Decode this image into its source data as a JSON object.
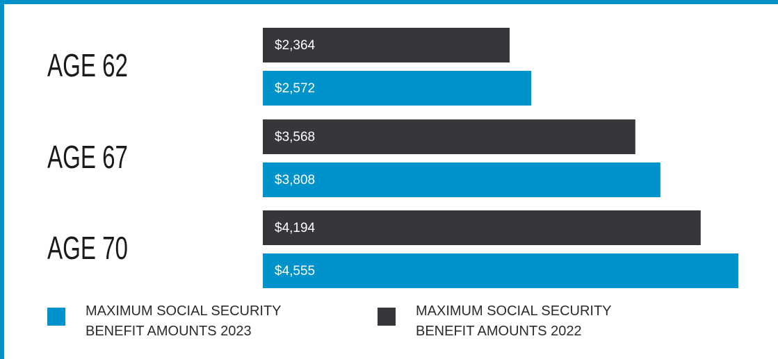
{
  "chart_data": {
    "type": "bar",
    "orientation": "horizontal",
    "categories": [
      "AGE 62",
      "AGE 67",
      "AGE 70"
    ],
    "series": [
      {
        "name": "MAXIMUM SOCIAL SECURITY BENEFIT AMOUNTS 2023",
        "color": "#0093cb",
        "values": [
          2572,
          3808,
          4555
        ],
        "value_labels": [
          "$2,572",
          "$3,808",
          "$4,555"
        ]
      },
      {
        "name": "MAXIMUM SOCIAL SECURITY BENEFIT AMOUNTS 2022",
        "color": "#35373b",
        "values": [
          2364,
          3568,
          4194
        ],
        "value_labels": [
          "$2,364",
          "$3,568",
          "$4,194"
        ]
      }
    ],
    "legend": "bottom"
  }
}
